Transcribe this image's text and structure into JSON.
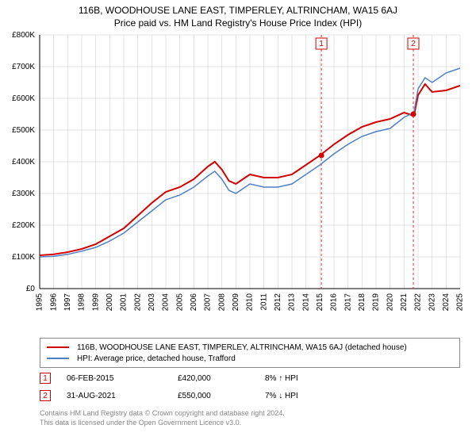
{
  "title": "116B, WOODHOUSE LANE EAST, TIMPERLEY, ALTRINCHAM, WA15 6AJ",
  "subtitle": "Price paid vs. HM Land Registry's House Price Index (HPI)",
  "chart": {
    "type": "line",
    "background_color": "#ffffff",
    "grid_color": "#c8c8c8",
    "axis_color": "#000000",
    "ylim": [
      0,
      800000
    ],
    "ytick_step": 100000,
    "yticks": [
      "£0",
      "£100K",
      "£200K",
      "£300K",
      "£400K",
      "£500K",
      "£600K",
      "£700K",
      "£800K"
    ],
    "xlim": [
      1995,
      2025
    ],
    "xticks": [
      1995,
      1996,
      1997,
      1998,
      1999,
      2000,
      2001,
      2002,
      2003,
      2004,
      2005,
      2006,
      2007,
      2008,
      2009,
      2010,
      2011,
      2012,
      2013,
      2014,
      2015,
      2016,
      2017,
      2018,
      2019,
      2020,
      2021,
      2022,
      2023,
      2024,
      2025
    ],
    "label_fontsize": 10,
    "tick_fontsize": 10,
    "series": [
      {
        "name": "116B, WOODHOUSE LANE EAST, TIMPERLEY, ALTRINCHAM, WA15 6AJ (detached house)",
        "color": "#d40000",
        "line_width": 2,
        "data": [
          [
            1995,
            105
          ],
          [
            1996,
            108
          ],
          [
            1997,
            115
          ],
          [
            1998,
            125
          ],
          [
            1999,
            140
          ],
          [
            2000,
            165
          ],
          [
            2001,
            190
          ],
          [
            2002,
            230
          ],
          [
            2003,
            270
          ],
          [
            2004,
            305
          ],
          [
            2005,
            320
          ],
          [
            2006,
            345
          ],
          [
            2007,
            385
          ],
          [
            2007.5,
            400
          ],
          [
            2008,
            375
          ],
          [
            2008.5,
            340
          ],
          [
            2009,
            330
          ],
          [
            2010,
            360
          ],
          [
            2011,
            350
          ],
          [
            2012,
            350
          ],
          [
            2013,
            360
          ],
          [
            2014,
            390
          ],
          [
            2015,
            420
          ],
          [
            2016,
            455
          ],
          [
            2017,
            485
          ],
          [
            2018,
            510
          ],
          [
            2019,
            525
          ],
          [
            2020,
            535
          ],
          [
            2021,
            555
          ],
          [
            2021.7,
            545
          ],
          [
            2022,
            610
          ],
          [
            2022.5,
            645
          ],
          [
            2023,
            620
          ],
          [
            2024,
            625
          ],
          [
            2025,
            640
          ]
        ]
      },
      {
        "name": "HPI: Average price, detached house, Trafford",
        "color": "#4f7fc5",
        "line_width": 1.5,
        "data": [
          [
            1995,
            100
          ],
          [
            1996,
            102
          ],
          [
            1997,
            108
          ],
          [
            1998,
            118
          ],
          [
            1999,
            130
          ],
          [
            2000,
            150
          ],
          [
            2001,
            175
          ],
          [
            2002,
            210
          ],
          [
            2003,
            245
          ],
          [
            2004,
            280
          ],
          [
            2005,
            295
          ],
          [
            2006,
            320
          ],
          [
            2007,
            355
          ],
          [
            2007.5,
            370
          ],
          [
            2008,
            345
          ],
          [
            2008.5,
            310
          ],
          [
            2009,
            300
          ],
          [
            2010,
            330
          ],
          [
            2011,
            320
          ],
          [
            2012,
            320
          ],
          [
            2013,
            330
          ],
          [
            2014,
            360
          ],
          [
            2015,
            390
          ],
          [
            2016,
            425
          ],
          [
            2017,
            455
          ],
          [
            2018,
            480
          ],
          [
            2019,
            495
          ],
          [
            2020,
            505
          ],
          [
            2021,
            540
          ],
          [
            2021.7,
            555
          ],
          [
            2022,
            630
          ],
          [
            2022.5,
            665
          ],
          [
            2023,
            650
          ],
          [
            2024,
            680
          ],
          [
            2025,
            695
          ]
        ]
      }
    ],
    "sale_markers": [
      {
        "n": 1,
        "x": 2015.1,
        "y": 420,
        "color": "#d40000"
      },
      {
        "n": 2,
        "x": 2021.66,
        "y": 550,
        "color": "#d40000"
      }
    ],
    "sale_guidelines_color": "#d40000"
  },
  "legend": {
    "items": [
      {
        "color": "#d40000",
        "width": 2,
        "label": "116B, WOODHOUSE LANE EAST, TIMPERLEY, ALTRINCHAM, WA15 6AJ (detached house)"
      },
      {
        "color": "#4f7fc5",
        "width": 1.5,
        "label": "HPI: Average price, detached house, Trafford"
      }
    ]
  },
  "sales": [
    {
      "n": "1",
      "color": "#d40000",
      "date": "06-FEB-2015",
      "price": "£420,000",
      "delta": "8% ↑ HPI"
    },
    {
      "n": "2",
      "color": "#d40000",
      "date": "31-AUG-2021",
      "price": "£550,000",
      "delta": "7% ↓ HPI"
    }
  ],
  "footer": {
    "line1": "Contains HM Land Registry data © Crown copyright and database right 2024.",
    "line2": "This data is licensed under the Open Government Licence v3.0."
  }
}
